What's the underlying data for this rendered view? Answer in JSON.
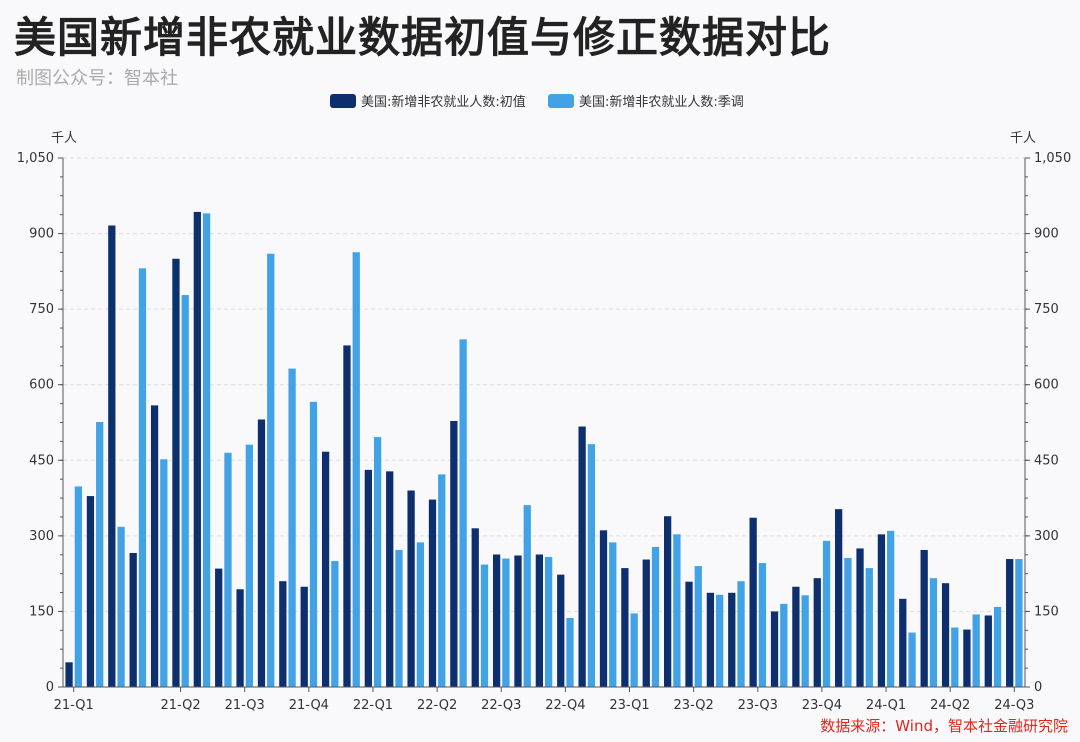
{
  "title": "美国新增非农就业数据初值与修正数据对比",
  "subtitle": "制图公众号：智本社",
  "source": "数据来源：Wind，智本社金融研究院",
  "colors": {
    "initial": "#0d2f6e",
    "revised": "#42a2e6",
    "grid": "#dddddd",
    "axis": "#555555"
  },
  "chart_data": {
    "type": "bar",
    "y_unit_left": "千人",
    "y_unit_right": "千人",
    "ylim": [
      0,
      1050
    ],
    "yticks": [
      0,
      150,
      300,
      450,
      600,
      750,
      900,
      1050
    ],
    "ytick_labels": [
      "0",
      "150",
      "300",
      "450",
      "600",
      "750",
      "900",
      "1,050"
    ],
    "grid": true,
    "legend_position": "top-center",
    "categories": [
      "2021-01",
      "2021-02",
      "2021-03",
      "2021-04",
      "2021-05",
      "2021-06",
      "2021-07",
      "2021-08",
      "2021-09",
      "2021-10",
      "2021-11",
      "2021-12",
      "2022-01",
      "2022-02",
      "2022-03",
      "2022-04",
      "2022-05",
      "2022-06",
      "2022-07",
      "2022-08",
      "2022-09",
      "2022-10",
      "2022-11",
      "2022-12",
      "2023-01",
      "2023-02",
      "2023-03",
      "2023-04",
      "2023-05",
      "2023-06",
      "2023-07",
      "2023-08",
      "2023-09",
      "2023-10",
      "2023-11",
      "2023-12",
      "2024-01",
      "2024-02",
      "2024-03",
      "2024-04",
      "2024-05",
      "2024-06",
      "2024-07",
      "2024-08",
      "2024-09"
    ],
    "x_tick_labels": [
      {
        "index": 0,
        "label": "21-Q1"
      },
      {
        "index": 5,
        "label": "21-Q2"
      },
      {
        "index": 8,
        "label": "21-Q3"
      },
      {
        "index": 11,
        "label": "21-Q4"
      },
      {
        "index": 14,
        "label": "22-Q1"
      },
      {
        "index": 17,
        "label": "22-Q2"
      },
      {
        "index": 20,
        "label": "22-Q3"
      },
      {
        "index": 23,
        "label": "22-Q4"
      },
      {
        "index": 26,
        "label": "23-Q1"
      },
      {
        "index": 29,
        "label": "23-Q2"
      },
      {
        "index": 32,
        "label": "23-Q3"
      },
      {
        "index": 35,
        "label": "23-Q4"
      },
      {
        "index": 38,
        "label": "24-Q1"
      },
      {
        "index": 41,
        "label": "24-Q2"
      },
      {
        "index": 44,
        "label": "24-Q3"
      }
    ],
    "series": [
      {
        "name": "美国:新增非农就业人数:初值",
        "values": [
          49,
          379,
          916,
          266,
          559,
          850,
          943,
          235,
          194,
          531,
          210,
          199,
          467,
          678,
          431,
          428,
          390,
          372,
          528,
          315,
          263,
          261,
          263,
          223,
          517,
          311,
          236,
          253,
          339,
          209,
          187,
          187,
          336,
          150,
          199,
          216,
          353,
          275,
          303,
          175,
          272,
          206,
          114,
          142,
          254
        ]
      },
      {
        "name": "美国:新增非农就业人数:季调",
        "values": [
          398,
          526,
          318,
          831,
          452,
          778,
          940,
          465,
          481,
          860,
          632,
          566,
          250,
          863,
          496,
          272,
          287,
          422,
          690,
          243,
          255,
          361,
          258,
          137,
          482,
          287,
          146,
          278,
          303,
          240,
          183,
          210,
          246,
          165,
          182,
          290,
          256,
          236,
          310,
          108,
          216,
          118,
          144,
          159,
          254
        ]
      }
    ]
  }
}
